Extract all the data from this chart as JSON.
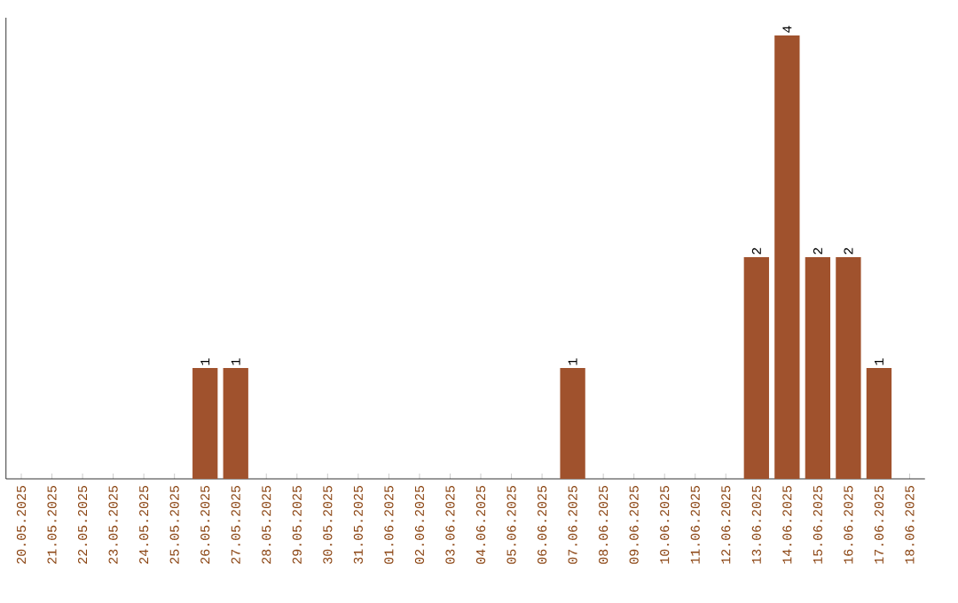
{
  "chart_data": {
    "type": "bar",
    "color": "#a0522d",
    "categories": [
      "20.05.2025",
      "21.05.2025",
      "22.05.2025",
      "23.05.2025",
      "24.05.2025",
      "25.05.2025",
      "26.05.2025",
      "27.05.2025",
      "28.05.2025",
      "29.05.2025",
      "30.05.2025",
      "31.05.2025",
      "01.06.2025",
      "02.06.2025",
      "03.06.2025",
      "04.06.2025",
      "05.06.2025",
      "06.06.2025",
      "07.06.2025",
      "08.06.2025",
      "09.06.2025",
      "10.06.2025",
      "11.06.2025",
      "12.06.2025",
      "13.06.2025",
      "14.06.2025",
      "15.06.2025",
      "16.06.2025",
      "17.06.2025",
      "18.06.2025"
    ],
    "values": [
      0,
      0,
      0,
      0,
      0,
      0,
      1,
      1,
      0,
      0,
      0,
      0,
      0,
      0,
      0,
      0,
      0,
      0,
      1,
      0,
      0,
      0,
      0,
      0,
      2,
      4,
      2,
      2,
      1,
      0
    ],
    "value_labels": [
      null,
      null,
      null,
      null,
      null,
      null,
      "1",
      "1",
      null,
      null,
      null,
      null,
      null,
      null,
      null,
      null,
      null,
      null,
      "1",
      null,
      null,
      null,
      null,
      null,
      "2",
      "4",
      "2",
      "2",
      "1",
      null
    ],
    "grid": false
  }
}
